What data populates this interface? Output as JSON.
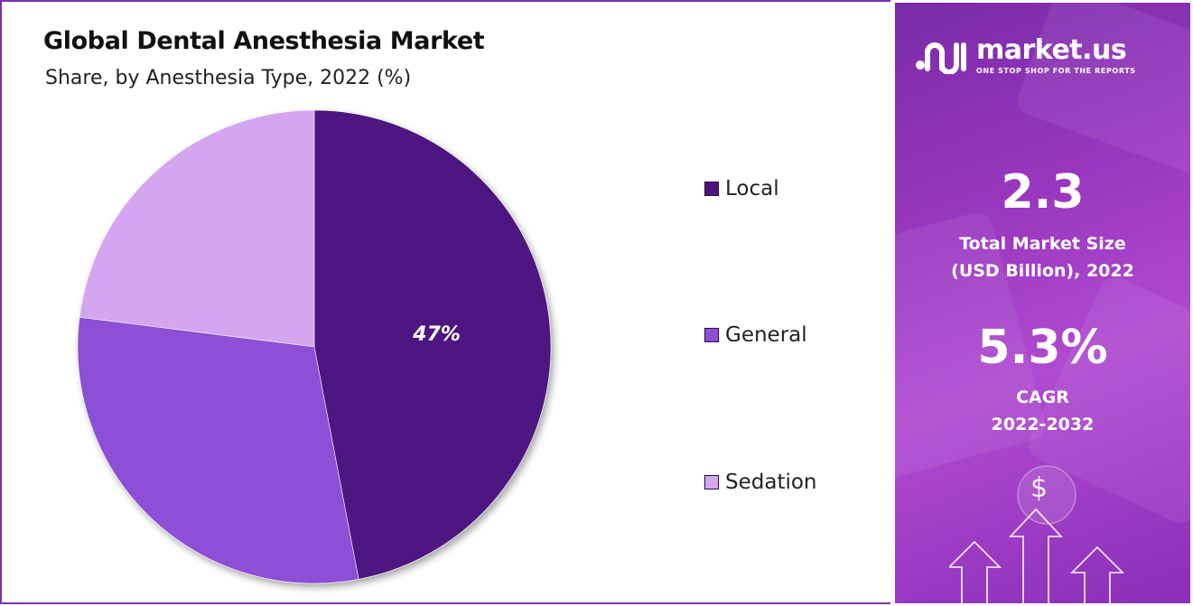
{
  "chart_data": {
    "type": "pie",
    "title": "Global Dental Anesthesia Market",
    "subtitle": "Share, by Anesthesia Type, 2022 (%)",
    "slices": [
      {
        "label": "Local",
        "value": 47,
        "color": "#4e1380",
        "data_label": "47%"
      },
      {
        "label": "General",
        "value": 30,
        "color": "#8c4fd6",
        "data_label": ""
      },
      {
        "label": "Sedation",
        "value": 23,
        "color": "#d5a6f0",
        "data_label": ""
      }
    ],
    "legend_position": "right"
  },
  "side_panel": {
    "brand": {
      "name": "market.us",
      "tagline": "ONE STOP SHOP FOR THE REPORTS",
      "logo_icon": "market-us-logo-icon"
    },
    "market_size_value": "2.3",
    "market_size_caption_line1": "Total Market Size",
    "market_size_caption_line2": "(USD Billion), 2022",
    "cagr_value": "5.3%",
    "cagr_caption_line1": "CAGR",
    "cagr_caption_line2": "2022-2032",
    "dollar_symbol": "$",
    "decor_icons": [
      "dollar-coin-icon",
      "up-arrow-icon"
    ]
  }
}
